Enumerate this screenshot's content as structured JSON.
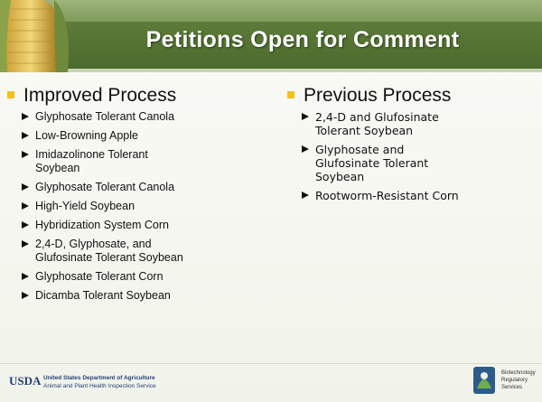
{
  "header": {
    "title": "Petitions Open for Comment"
  },
  "columns": [
    {
      "heading": "Improved Process",
      "items": [
        "Glyphosate Tolerant Canola",
        "Low-Browning Apple",
        "Imidazolinone Tolerant\nSoybean",
        "Glyphosate Tolerant Canola",
        "High-Yield Soybean",
        "Hybridization System Corn",
        "2,4-D, Glyphosate, and\nGlufosinate Tolerant Soybean",
        "Glyphosate Tolerant Corn",
        "Dicamba Tolerant Soybean"
      ]
    },
    {
      "heading": "Previous Process",
      "items": [
        "2,4-D and Glufosinate\nTolerant Soybean",
        "Glyphosate and\nGlufosinate Tolerant\nSoybean",
        "Rootworm-Resistant Corn"
      ]
    }
  ],
  "footer": {
    "usda": "USDA",
    "agency_lines": [
      "United States Department of Agriculture",
      "Animal and Plant Health Inspection Service"
    ],
    "brs_lines": [
      "Biotechnology",
      "Regulatory",
      "Services"
    ]
  }
}
